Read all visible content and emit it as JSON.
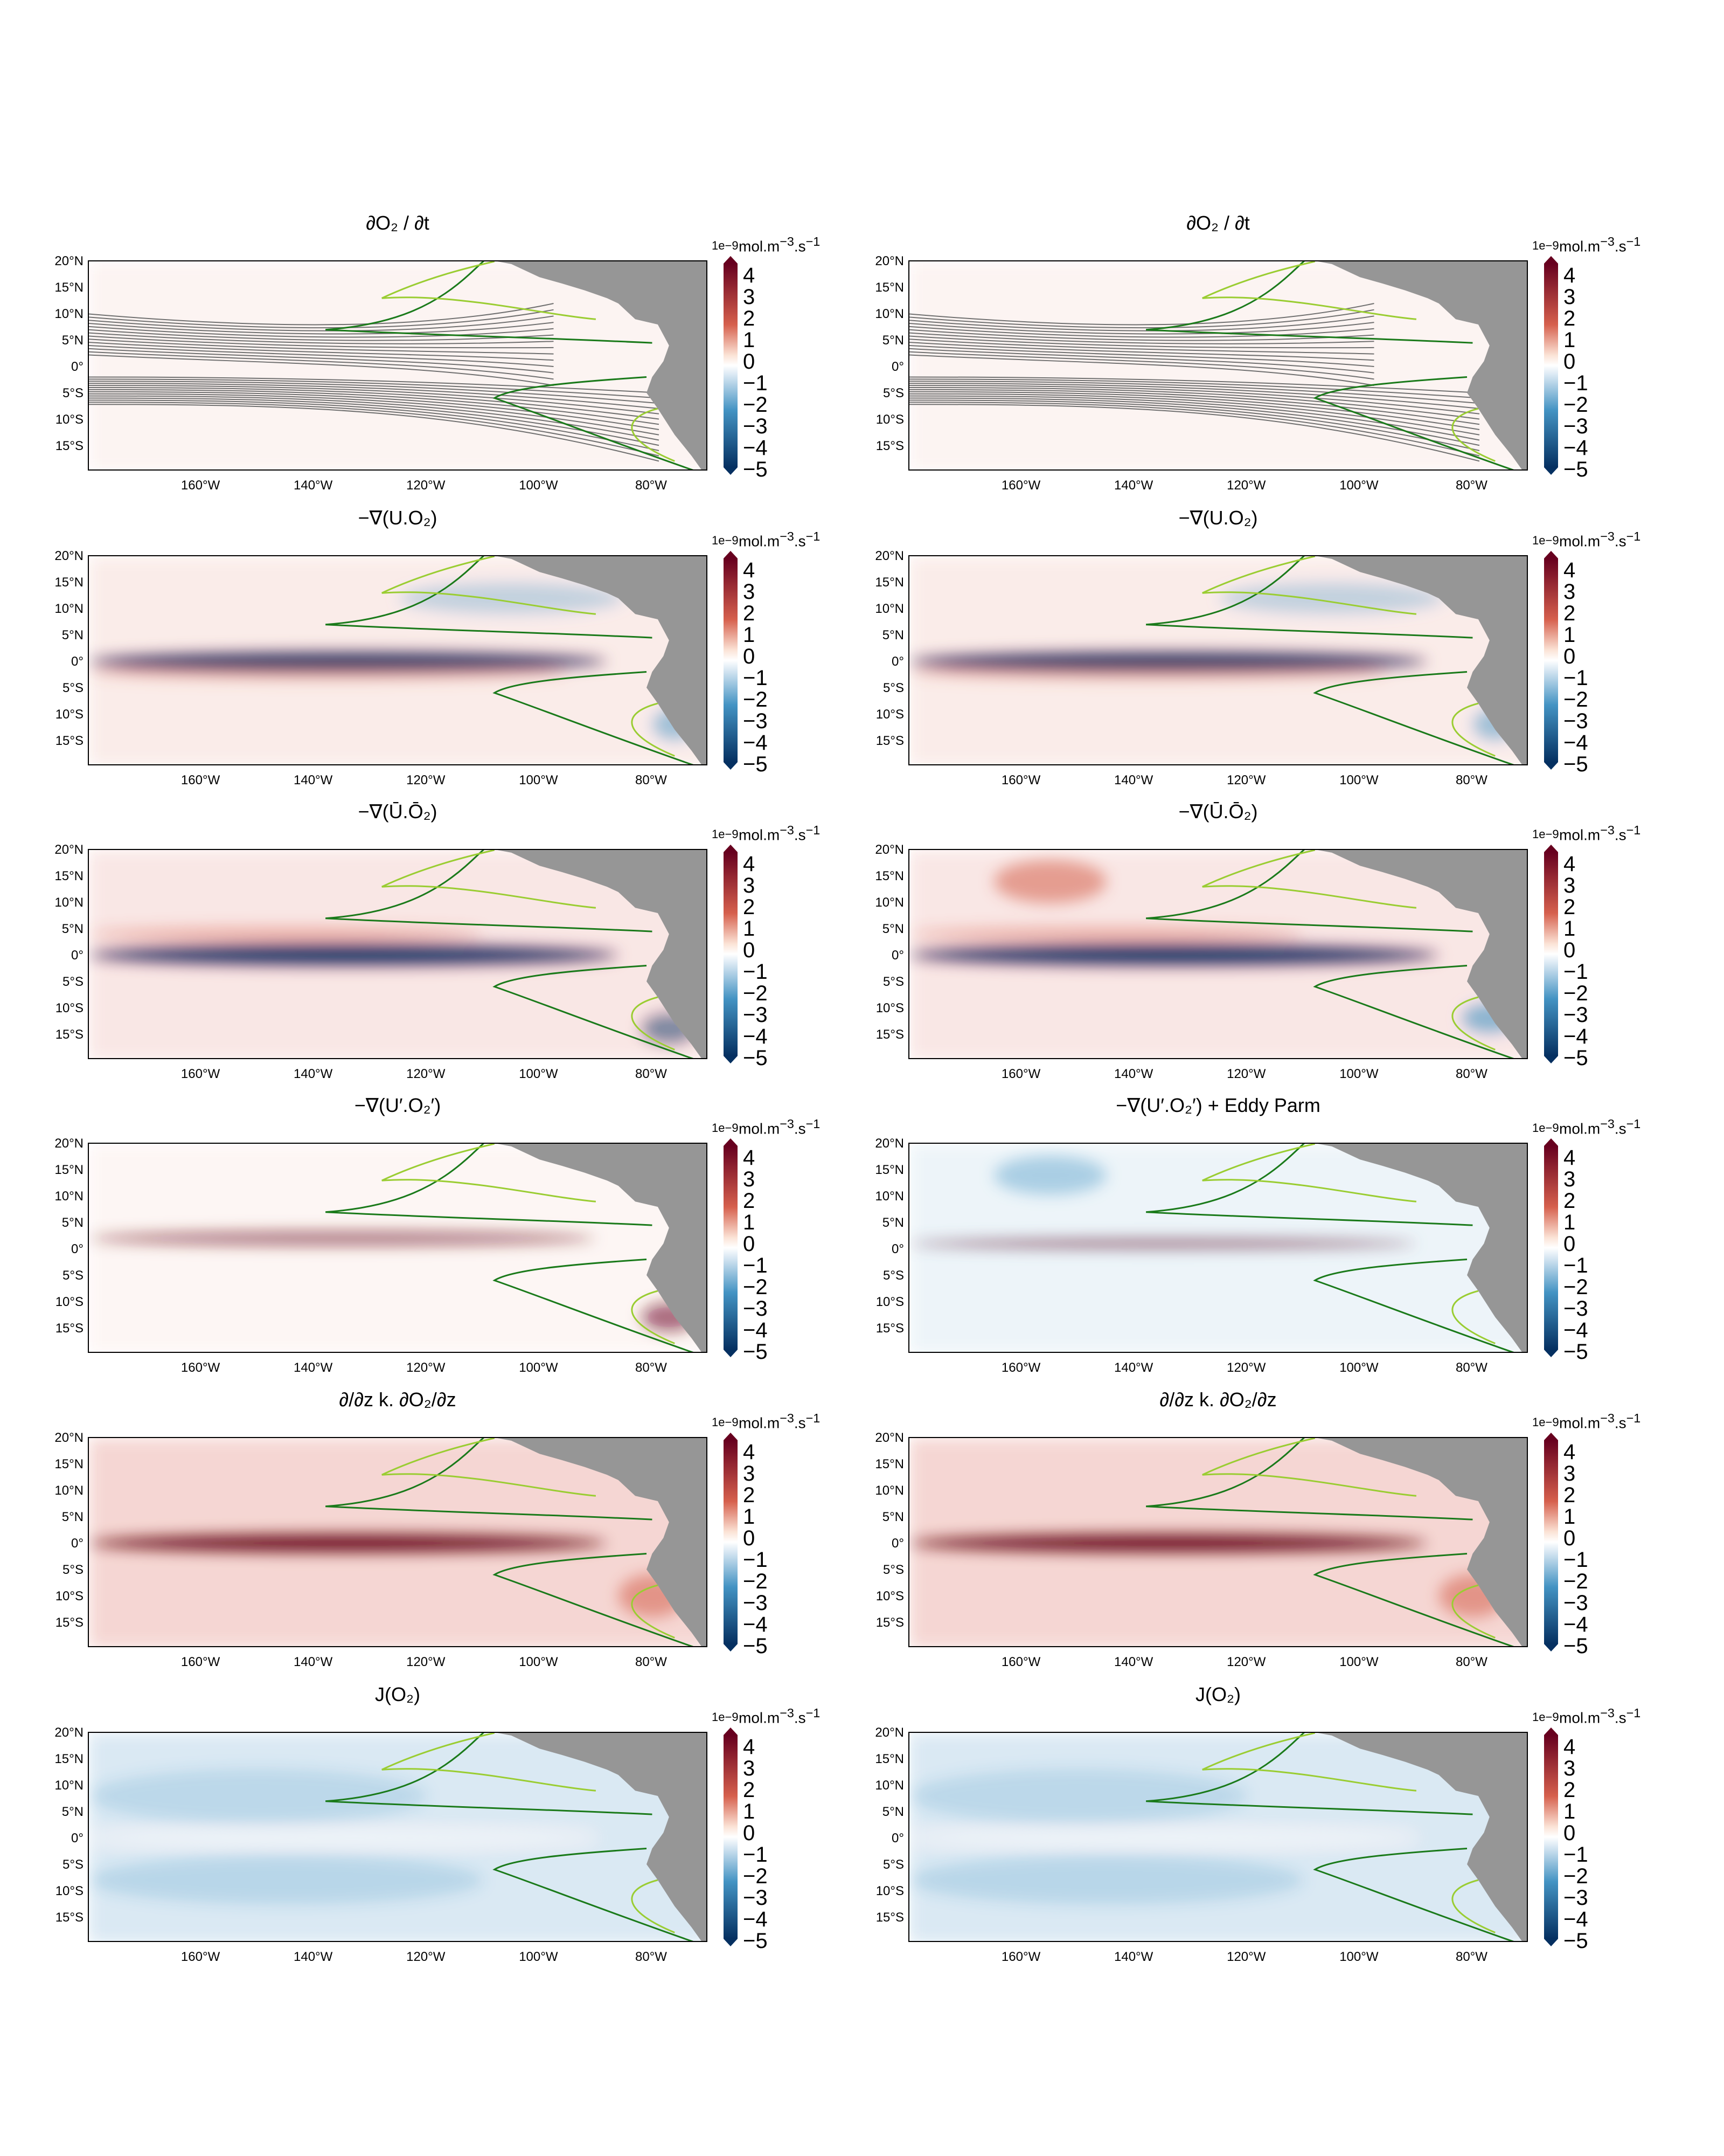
{
  "units": {
    "exponent": "1e−9",
    "unit_text": "mol.m",
    "unit_sup1": "−3",
    "unit_mid": ".s",
    "unit_sup2": "−1"
  },
  "lat_labels": [
    "20°N",
    "15°N",
    "10°N",
    "5°N",
    "0°",
    "5°S",
    "10°S",
    "15°S"
  ],
  "lon_labels": [
    "160°W",
    "140°W",
    "120°W",
    "100°W",
    "80°W"
  ],
  "colorbar_ticks": [
    "4",
    "3",
    "2",
    "1",
    "0",
    "−1",
    "−2",
    "−3",
    "−4",
    "−5"
  ],
  "colors": {
    "pos_max": "#67001f",
    "pos": "#d6604d",
    "neg": "#4393c3",
    "neg_max": "#053061",
    "land": "#969696",
    "contour_dark_green": "#1a7a1a",
    "contour_light_green": "#9acd32",
    "contour_grey": "#707070"
  },
  "rows": [
    {
      "left_title": "∂O₂ / ∂t",
      "right_title": "∂O₂ / ∂t",
      "kind": "tendency"
    },
    {
      "left_title": "−∇(U.O₂)",
      "right_title": "−∇(U.O₂)",
      "kind": "total_adv"
    },
    {
      "left_title": "−∇(Ū.Ō₂)",
      "right_title": "−∇(Ū.Ō₂)",
      "kind": "mean_adv"
    },
    {
      "left_title": "−∇(U′.O₂′)",
      "right_title": "−∇(U′.O₂′) + Eddy Parm",
      "kind": "eddy"
    },
    {
      "left_title": "∂/∂z k. ∂O₂/∂z",
      "right_title": "∂/∂z k. ∂O₂/∂z",
      "kind": "mixing"
    },
    {
      "left_title": "J(O₂)",
      "right_title": "J(O₂)",
      "kind": "sms"
    }
  ]
}
